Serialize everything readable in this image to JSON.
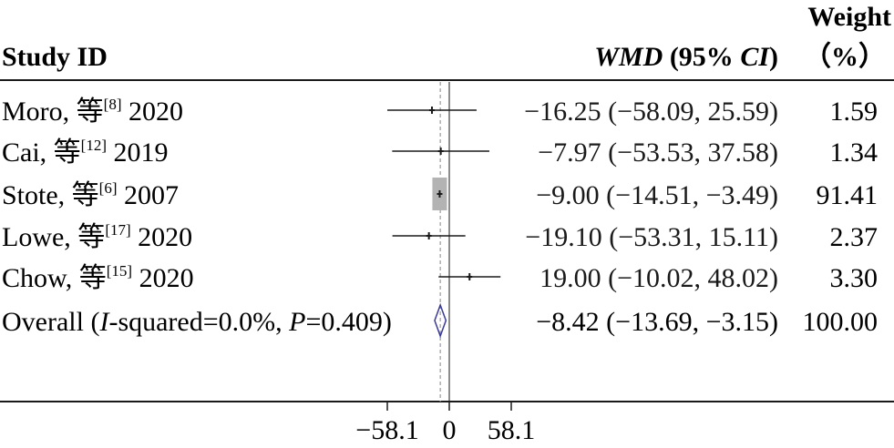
{
  "chart_data": {
    "type": "forest",
    "headers": {
      "study": "Study ID",
      "effect_italic": "WMD",
      "effect_mid": " (95% ",
      "effect_ci": "CI",
      "effect_end": ")",
      "weight_line1": "Weight",
      "weight_line2": "（%）"
    },
    "studies": [
      {
        "name": "Moro, 等",
        "ref": "[8]",
        "year": " 2020",
        "est": -16.25,
        "lo": -58.09,
        "hi": 25.59,
        "ci_text": "−16.25 (−58.09, 25.59)",
        "weight": 1.59,
        "weight_text": "1.59"
      },
      {
        "name": "Cai, 等",
        "ref": "[12]",
        "year": " 2019",
        "est": -7.97,
        "lo": -53.53,
        "hi": 37.58,
        "ci_text": "−7.97 (−53.53, 37.58)",
        "weight": 1.34,
        "weight_text": "1.34"
      },
      {
        "name": "Stote, 等",
        "ref": "[6]",
        "year": " 2007",
        "est": -9.0,
        "lo": -14.51,
        "hi": -3.49,
        "ci_text": "−9.00 (−14.51, −3.49)",
        "weight": 91.41,
        "weight_text": "91.41"
      },
      {
        "name": "Lowe, 等",
        "ref": "[17]",
        "year": " 2020",
        "est": -19.1,
        "lo": -53.31,
        "hi": 15.11,
        "ci_text": "−19.10 (−53.31, 15.11)",
        "weight": 2.37,
        "weight_text": "2.37"
      },
      {
        "name": "Chow, 等",
        "ref": "[15]",
        "year": " 2020",
        "est": 19.0,
        "lo": -10.02,
        "hi": 48.02,
        "ci_text": "19.00 (−10.02, 48.02)",
        "weight": 3.3,
        "weight_text": "3.30"
      }
    ],
    "overall": {
      "label_pre": "Overall (",
      "label_i": "I",
      "label_mid": "-squared=0.0%, ",
      "label_p": "P",
      "label_end": "=0.409)",
      "est": -8.42,
      "lo": -13.69,
      "hi": -3.15,
      "ci_text": "−8.42 (−13.69, −3.15)",
      "weight": 100.0,
      "weight_text": "100.00"
    },
    "x_axis": {
      "ticks": [
        -58.1,
        0,
        58.1
      ],
      "tick_labels": [
        "−58.1",
        "0",
        "58.1"
      ],
      "null_line": 0
    },
    "colors": {
      "line": "#1a1a1a",
      "box": "#b3b3b3",
      "diamond": "#3a3a9a",
      "dashed": "#9a9a9a"
    }
  }
}
